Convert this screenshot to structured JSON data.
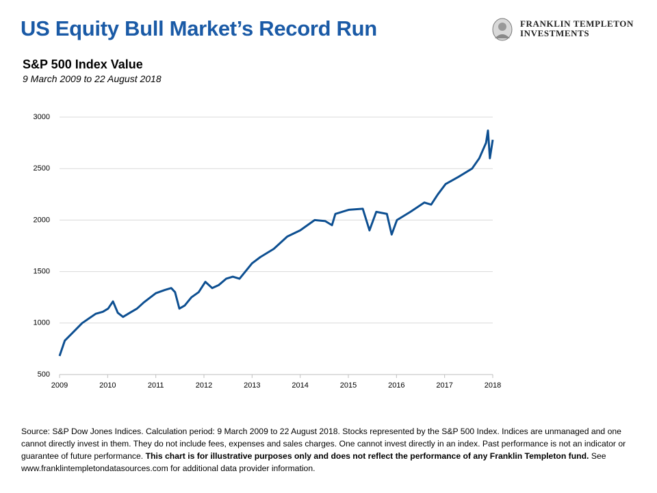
{
  "header": {
    "title": "US Equity Bull Market’s Record Run",
    "logo_line1": "FRANKLIN TEMPLETON",
    "logo_line2": "INVESTMENTS"
  },
  "chart_data": {
    "type": "line",
    "title": "S&P 500 Index Value",
    "subtitle": "9 March 2009 to 22 August 2018",
    "x": [
      2009.0,
      2009.11,
      2009.26,
      2009.47,
      2009.75,
      2009.9,
      2010.01,
      2010.11,
      2010.21,
      2010.32,
      2010.46,
      2010.61,
      2010.75,
      2011.0,
      2011.18,
      2011.32,
      2011.4,
      2011.49,
      2011.6,
      2011.74,
      2011.89,
      2012.03,
      2012.17,
      2012.31,
      2012.46,
      2012.6,
      2012.74,
      2013.0,
      2013.17,
      2013.45,
      2013.73,
      2014.0,
      2014.3,
      2014.52,
      2014.66,
      2014.73,
      2015.01,
      2015.3,
      2015.44,
      2015.58,
      2015.8,
      2015.9,
      2016.01,
      2016.29,
      2016.58,
      2016.72,
      2016.86,
      2017.02,
      2017.29,
      2017.57,
      2017.72,
      2017.86,
      2017.9,
      2017.94,
      2018.0
    ],
    "series": [
      {
        "name": "S&P 500",
        "color": "#0d4f91",
        "values": [
          680,
          830,
          900,
          1000,
          1090,
          1110,
          1140,
          1210,
          1100,
          1060,
          1100,
          1140,
          1200,
          1290,
          1320,
          1340,
          1300,
          1140,
          1170,
          1250,
          1300,
          1400,
          1340,
          1370,
          1430,
          1450,
          1430,
          1580,
          1640,
          1720,
          1840,
          1900,
          2000,
          1990,
          1950,
          2060,
          2100,
          2110,
          1900,
          2080,
          2060,
          1860,
          2000,
          2080,
          2170,
          2150,
          2250,
          2350,
          2420,
          2500,
          2600,
          2750,
          2870,
          2600,
          2780
        ]
      }
    ],
    "xlim": [
      2009,
      2018
    ],
    "xticks": [
      2009,
      2010,
      2011,
      2012,
      2013,
      2014,
      2015,
      2016,
      2017,
      2018
    ],
    "ylim": [
      500,
      3000
    ],
    "yticks": [
      500,
      1000,
      1500,
      2000,
      2500,
      3000
    ],
    "grid": true
  },
  "footnote": {
    "text": "Source: S&P Dow Jones Indices. Calculation period: 9 March 2009 to 22 August 2018. Stocks represented by the S&P 500 Index. Indices are unmanaged and one cannot directly invest in them. They do not include fees, expenses and sales charges. One cannot invest directly in an index. Past performance is not an indicator or guarantee of future performance. ",
    "bold": "This chart is for illustrative purposes only and does not reflect the performance of any Franklin Templeton fund.",
    "tail": " See www.franklintempletondatasources.com for additional data provider information."
  }
}
